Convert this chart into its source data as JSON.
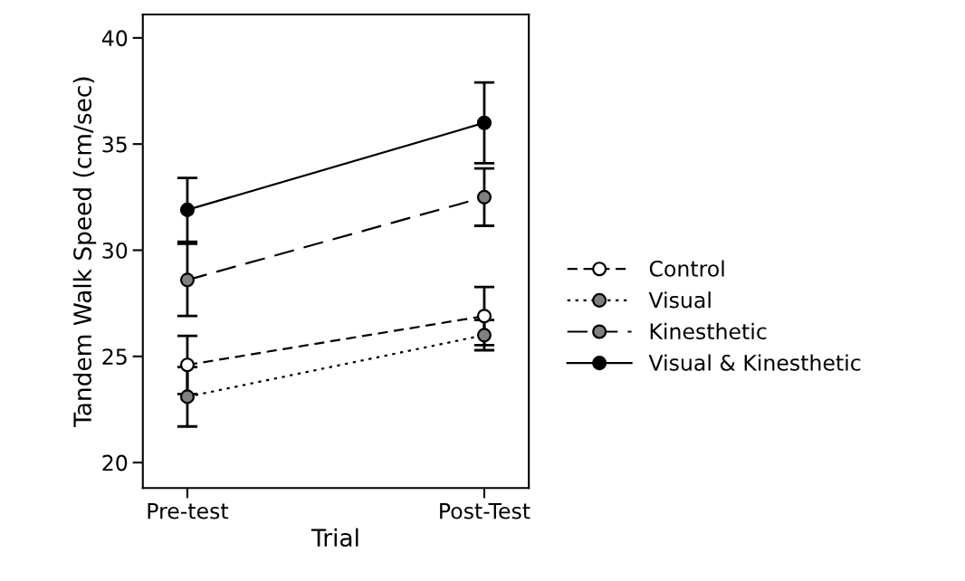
{
  "chart_data": {
    "type": "line",
    "xlabel": "Trial",
    "ylabel": "Tandem Walk Speed (cm/sec)",
    "categories": [
      "Pre-test",
      "Post-Test"
    ],
    "ylim": [
      18.8,
      41.1
    ],
    "yticks": [
      20,
      25,
      30,
      35,
      40
    ],
    "grid": false,
    "legend": "right",
    "marker": "circle",
    "series": [
      {
        "name": "Control",
        "color": "#ffffff",
        "line_style": "dashed",
        "values": [
          24.6,
          26.9
        ],
        "errors": [
          1.37,
          1.37
        ]
      },
      {
        "name": "Visual",
        "color": "#808080",
        "line_style": "dotted",
        "values": [
          23.1,
          26.0
        ],
        "errors": [
          1.4,
          0.71
        ]
      },
      {
        "name": "Kinesthetic",
        "color": "#808080",
        "line_style": "longdash",
        "values": [
          28.6,
          32.5
        ],
        "errors": [
          1.7,
          1.35
        ]
      },
      {
        "name": "Visual & Kinesthetic",
        "color": "#000000",
        "line_style": "solid",
        "values": [
          31.9,
          36.0
        ],
        "errors": [
          1.5,
          1.9
        ]
      }
    ]
  }
}
